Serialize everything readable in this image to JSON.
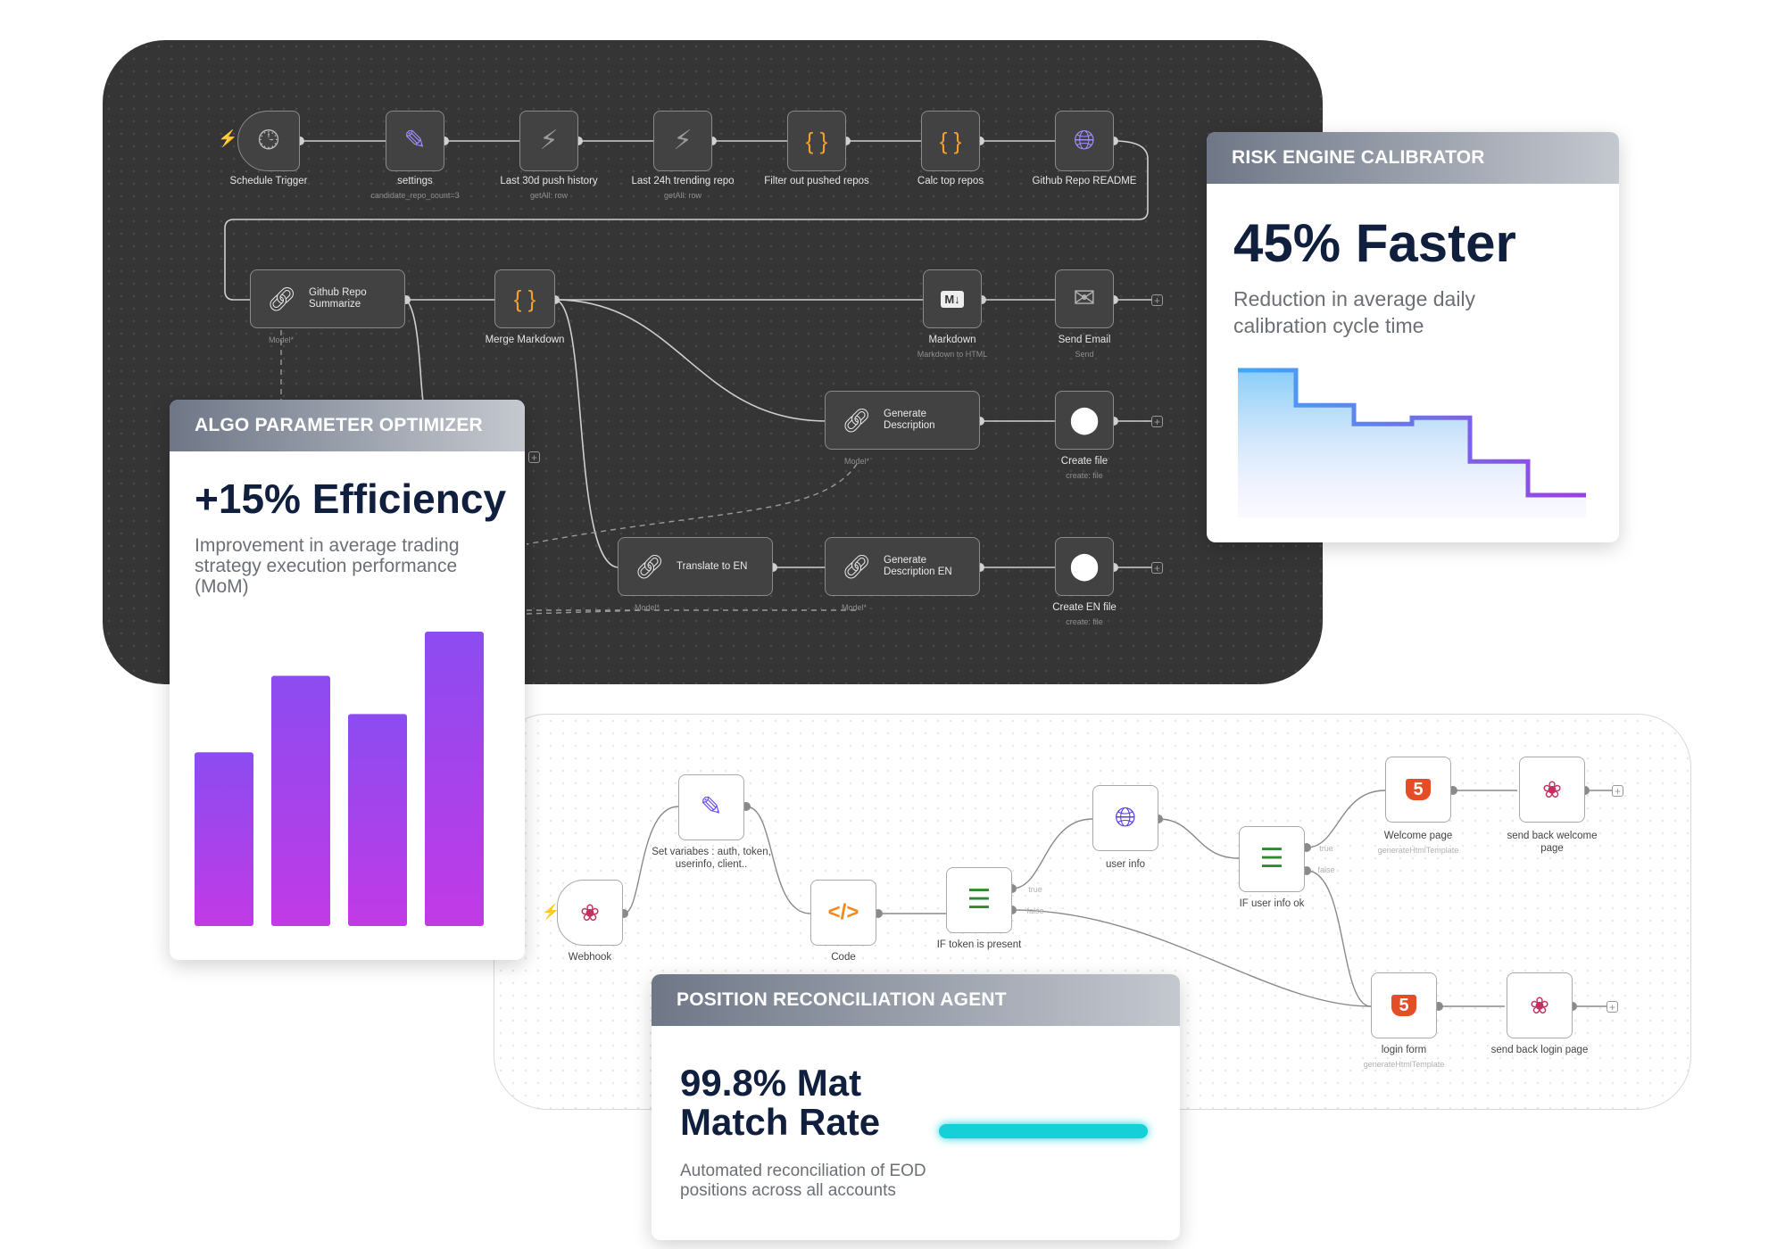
{
  "top_workflow": {
    "nodes": [
      {
        "label": "Schedule Trigger",
        "sub": "",
        "icon": "clock-icon"
      },
      {
        "label": "settings",
        "sub": "candidate_repo_count=3",
        "icon": "pencil-icon"
      },
      {
        "label": "Last 30d push history",
        "sub": "getAll: row",
        "icon": "bolt-icon"
      },
      {
        "label": "Last 24h trending repo",
        "sub": "getAll: row",
        "icon": "bolt-icon"
      },
      {
        "label": "Filter out pushed repos",
        "sub": "",
        "icon": "braces-icon"
      },
      {
        "label": "Calc top repos",
        "sub": "",
        "icon": "braces-icon"
      },
      {
        "label": "Github Repo README",
        "sub": "",
        "icon": "globe-icon"
      }
    ],
    "github_summarize": {
      "title": "Github Repo Summarize",
      "model": "Model*"
    },
    "merge_markdown": "Merge Markdown",
    "markdown": {
      "label": "Markdown",
      "sub": "Markdown to HTML"
    },
    "send_email": {
      "label": "Send Email",
      "sub": "Send"
    },
    "generate_description": {
      "title": "Generate Description",
      "model": "Model*"
    },
    "create_file": {
      "label": "Create file",
      "sub": "create: file"
    },
    "translate_en": {
      "title": "Translate to EN",
      "model": "Model*"
    },
    "generate_description_en": {
      "title": "Generate Description EN",
      "model": "Model*"
    },
    "create_en_file": {
      "label": "Create EN file",
      "sub": "create: file"
    },
    "markdown_icon_text": "M↓"
  },
  "bottom_workflow": {
    "webhook": "Webhook",
    "set_variables": "Set variabes : auth, token, userinfo, client..",
    "code": "Code",
    "if_token": "IF token is present",
    "user_info": "user info",
    "if_user_info": "IF user info ok",
    "welcome_page": {
      "label": "Welcome page",
      "sub": "generateHtmlTemplate"
    },
    "send_back_welcome": "send back welcome page",
    "login_form": {
      "label": "login form",
      "sub": "generateHtmlTemplate"
    },
    "send_back_login": "send back login page",
    "true_label": "true",
    "false_label": "false",
    "html5_text": "5"
  },
  "cards": {
    "algo": {
      "title": "ALGO PARAMETER OPTIMIZER",
      "headline": "+15% Efficiency",
      "description": "Improvement in average trading strategy execution performance (MoM)"
    },
    "risk": {
      "title": "RISK ENGINE CALIBRATOR",
      "headline": "45% Faster",
      "description": "Reduction in average daily calibration cycle time"
    },
    "position": {
      "title": "POSITION RECONCILIATION AGENT",
      "headline_line1": "99.8% Mat",
      "headline_line2": "Match Rate",
      "description": "Automated reconciliation of EOD positions across all accounts",
      "progress": 1.0
    }
  },
  "chart_data": [
    {
      "type": "bar",
      "categories": [
        "1",
        "2",
        "3",
        "4"
      ],
      "values": [
        59,
        85,
        72,
        100
      ],
      "ylim": [
        0,
        100
      ],
      "title": "",
      "xlabel": "",
      "ylabel": ""
    },
    {
      "type": "line",
      "x": [
        0,
        1,
        2,
        3,
        4,
        5
      ],
      "y": [
        100,
        72,
        57,
        62,
        27,
        0
      ],
      "title": "",
      "xlabel": "",
      "ylabel": ""
    }
  ],
  "colors": {
    "dark_bg": "#353535",
    "bar_top": "#8b4cf0",
    "bar_bottom": "#c13ae6",
    "step_line_start": "#3fa9f5",
    "step_line_end": "#9b3fe0",
    "progress": "#16d0d8",
    "headline": "#0f1f3d"
  }
}
